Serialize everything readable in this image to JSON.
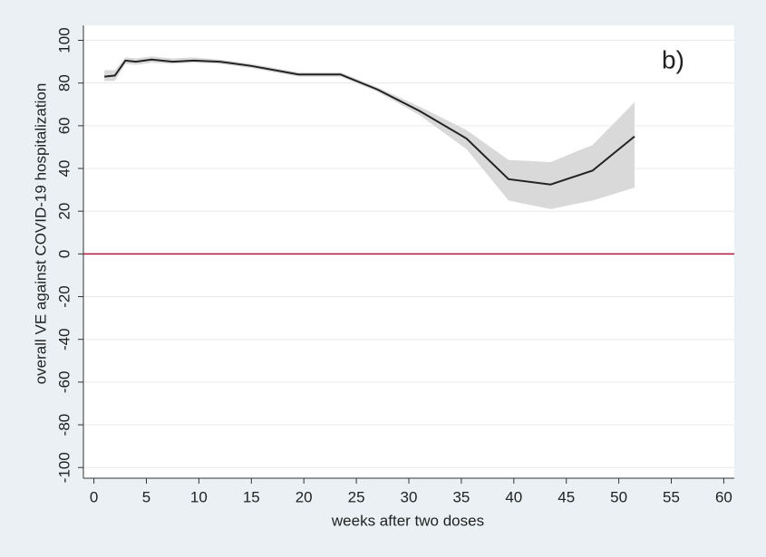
{
  "chart_data": {
    "type": "line",
    "y_label": "overall VE against COVID-19 hospitalization",
    "x_label": "weeks after two doses",
    "annotation": "b)",
    "x": [
      1,
      2,
      3,
      4,
      5.5,
      7.5,
      9.5,
      12,
      15,
      19.5,
      23.5,
      27,
      31,
      35.5,
      39.5,
      43.5,
      47.5,
      51.5
    ],
    "series": [
      {
        "color": "#222222",
        "band_color": "#d9d9d9",
        "values": [
          83,
          83.5,
          90.5,
          90,
          91,
          90,
          90.5,
          90,
          88,
          84,
          84,
          77,
          67,
          54,
          35,
          32.5,
          39,
          55
        ],
        "lower": [
          81,
          81,
          89,
          88.5,
          89.5,
          89,
          89.5,
          89,
          87,
          83,
          83,
          76,
          65,
          49,
          25,
          21,
          25,
          31
        ],
        "upper": [
          86,
          86,
          92,
          91.5,
          92.5,
          91.5,
          92,
          91,
          89,
          85,
          85,
          78,
          69,
          58,
          44,
          43,
          51,
          71
        ]
      }
    ],
    "reference_line": {
      "value": 0,
      "color": "#b0173f"
    },
    "xlim": [
      -1,
      61
    ],
    "xticks": [
      0,
      5,
      10,
      15,
      20,
      25,
      30,
      35,
      40,
      45,
      50,
      55,
      60
    ],
    "ylim": [
      -105,
      107
    ],
    "yticks": [
      -100,
      -80,
      -60,
      -40,
      -20,
      0,
      20,
      40,
      60,
      80,
      100
    ],
    "grid": true
  }
}
